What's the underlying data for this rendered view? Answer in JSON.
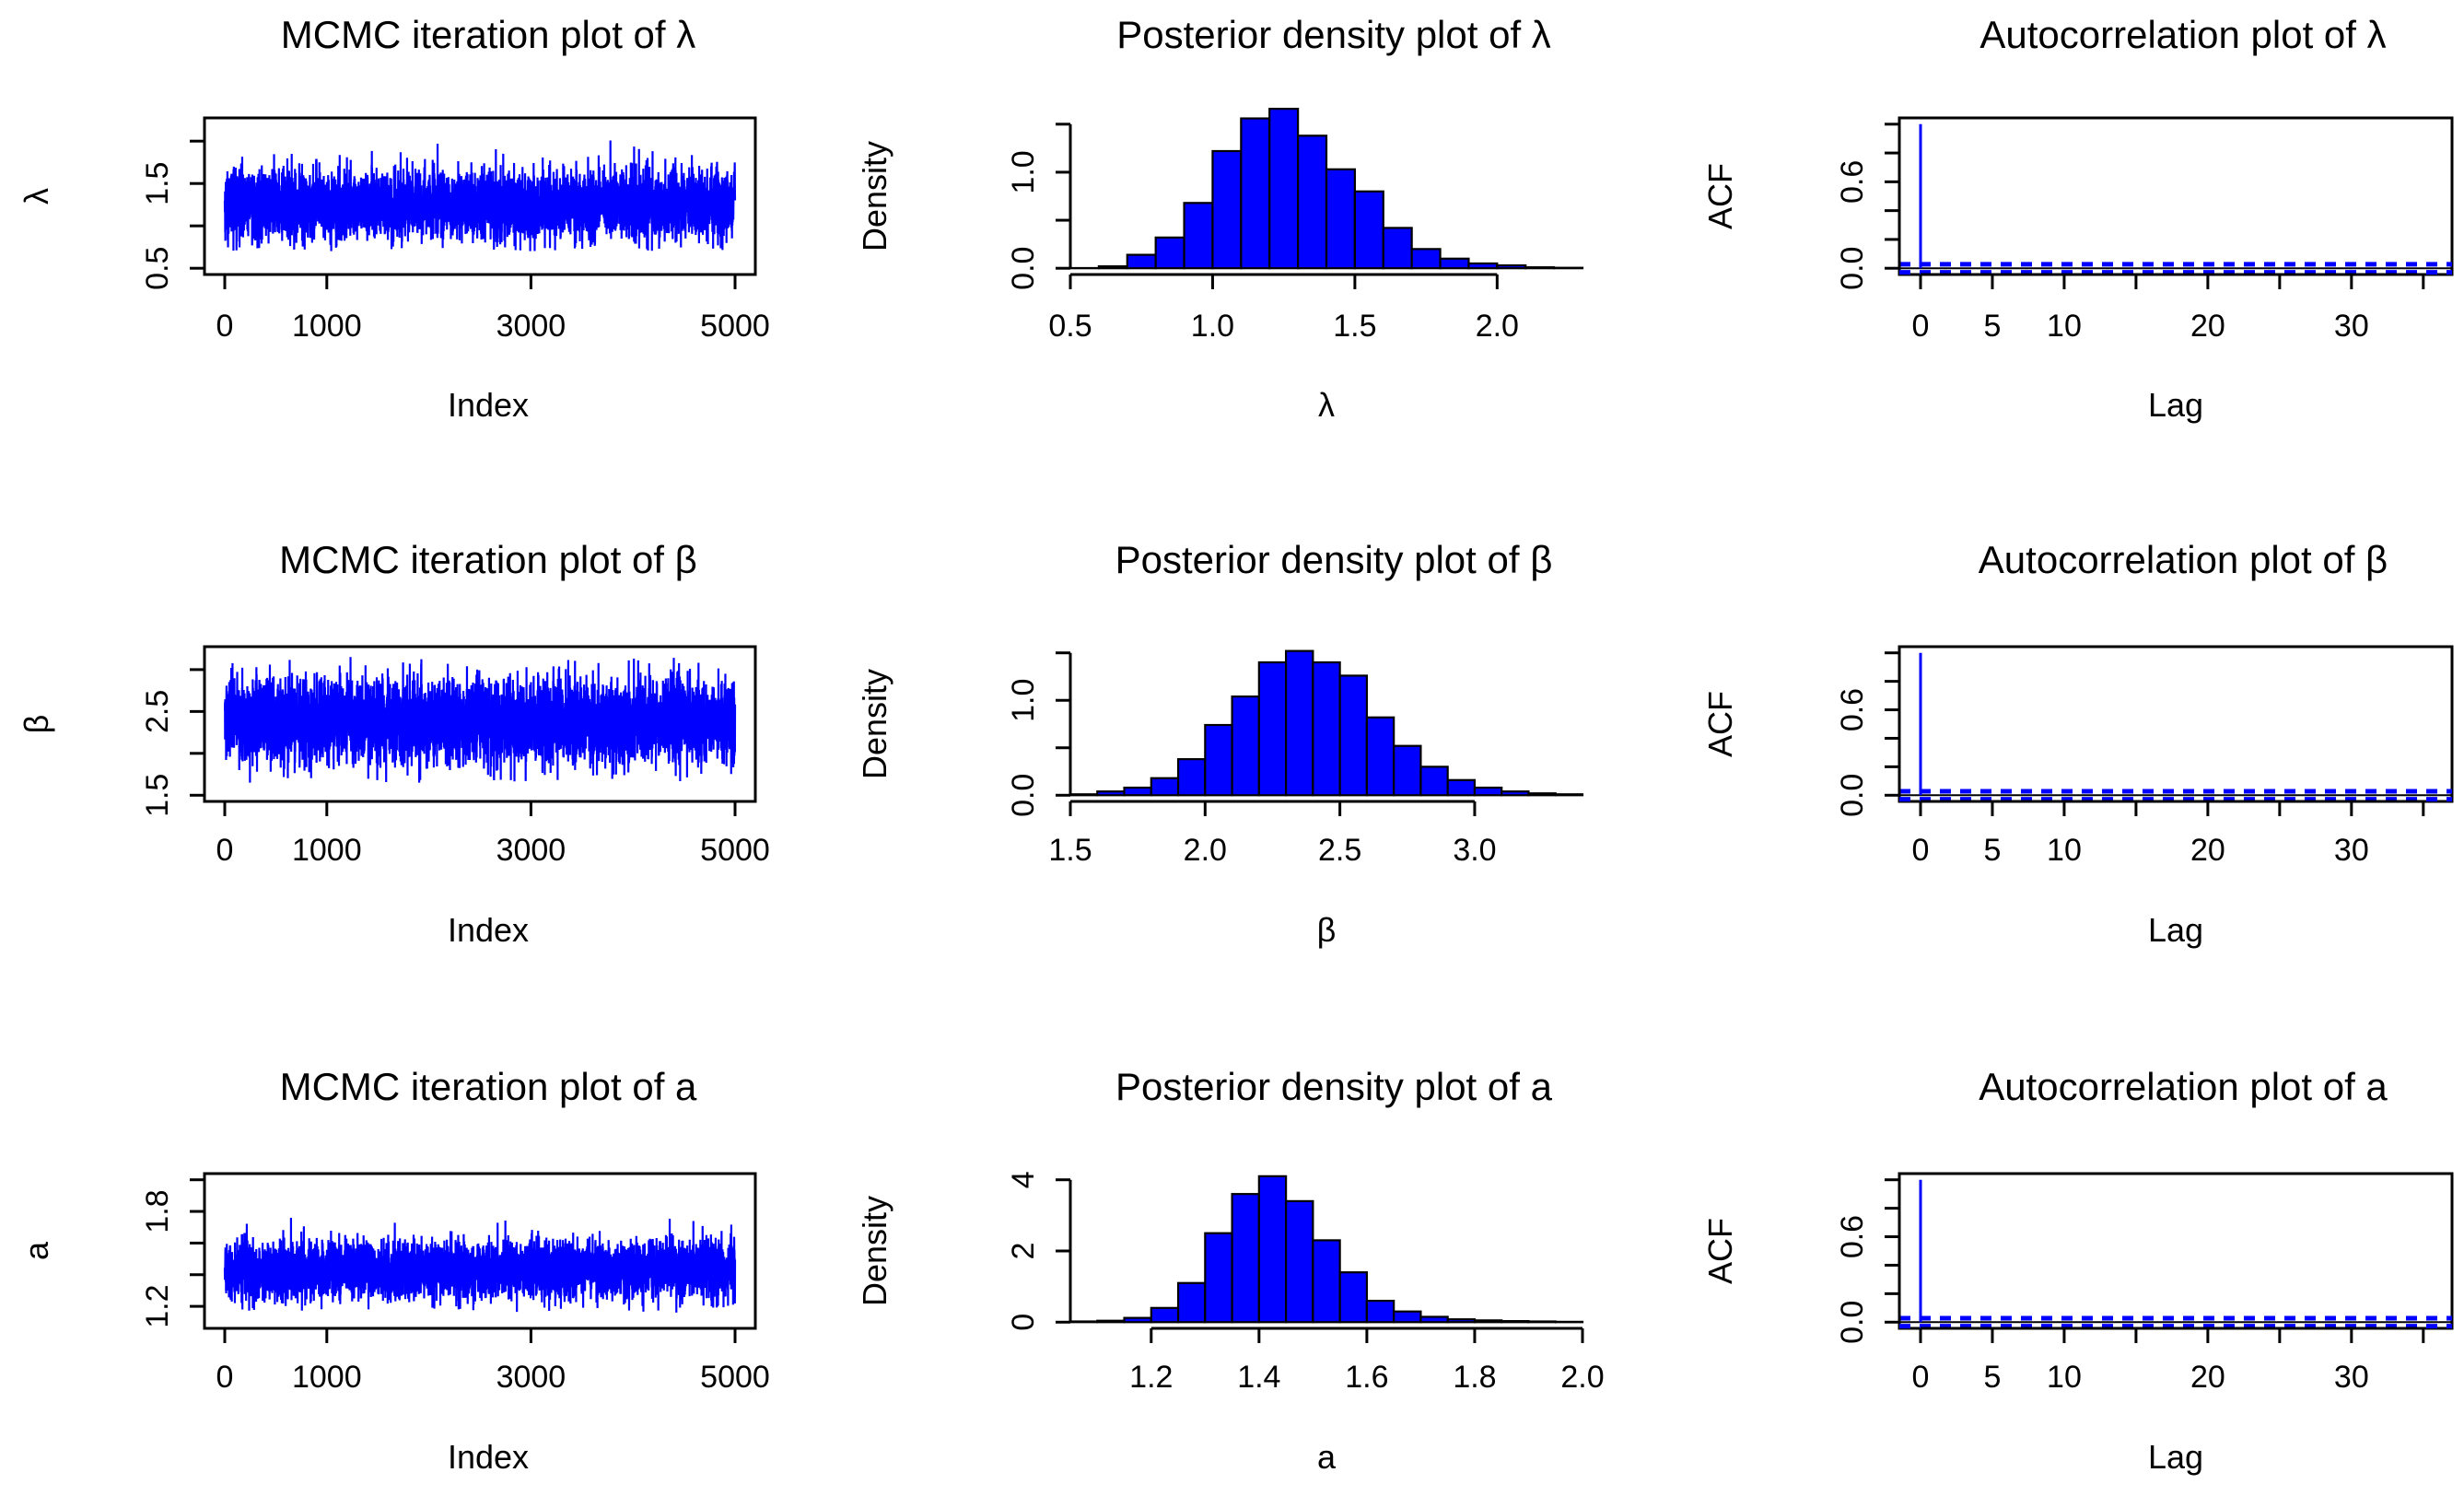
{
  "figure": {
    "layout": "3x3 grid",
    "rows": [
      "lambda",
      "beta",
      "a"
    ],
    "columns": [
      "trace",
      "histogram",
      "acf"
    ],
    "series_color": "#0000ff",
    "bar_fill": "#0000ff",
    "bar_edge": "#000000",
    "axis_color": "#000000"
  },
  "chart_data": [
    {
      "id": "trace-lambda",
      "type": "line",
      "title": "MCMC iteration plot of λ",
      "xlabel": "Index",
      "ylabel": "λ",
      "xlim": [
        0,
        5000
      ],
      "ylim": [
        0.5,
        2.2
      ],
      "xticks": [
        0,
        1000,
        3000,
        5000
      ],
      "xtick_labels": [
        "0",
        "1000",
        "3000",
        "5000"
      ],
      "yticks": [
        0.5,
        1,
        1.5,
        2
      ],
      "ytick_labels": [
        "0.5",
        "",
        "1.5",
        ""
      ],
      "n_iterations": 5000,
      "center": 1.25,
      "spread": 0.2,
      "min_value": 0.7,
      "max_value": 2.05
    },
    {
      "id": "hist-lambda",
      "type": "bar",
      "title": "Posterior density plot of λ",
      "xlabel": "λ",
      "ylabel": "Density",
      "xlim": [
        0.5,
        2.3
      ],
      "ylim": [
        0,
        1.5
      ],
      "xticks": [
        0.5,
        1,
        1.5,
        2
      ],
      "xtick_labels": [
        "0.5",
        "1.0",
        "1.5",
        "2.0"
      ],
      "yticks": [
        0,
        0.5,
        1,
        1.5
      ],
      "ytick_labels": [
        "0.0",
        "",
        "1.0",
        ""
      ],
      "bin_edges": [
        0.5,
        0.6,
        0.7,
        0.8,
        0.9,
        1.0,
        1.1,
        1.2,
        1.3,
        1.4,
        1.5,
        1.6,
        1.7,
        1.8,
        1.9,
        2.0,
        2.1,
        2.2,
        2.3
      ],
      "values": [
        0.002,
        0.02,
        0.14,
        0.32,
        0.68,
        1.22,
        1.56,
        1.66,
        1.38,
        1.03,
        0.8,
        0.42,
        0.2,
        0.1,
        0.05,
        0.03,
        0.01,
        0.005
      ]
    },
    {
      "id": "acf-lambda",
      "type": "bar",
      "title": "Autocorrelation plot of λ",
      "xlabel": "Lag",
      "ylabel": "ACF",
      "xlim": [
        0,
        37
      ],
      "ylim": [
        0,
        1
      ],
      "xticks": [
        0,
        5,
        10,
        15,
        20,
        25,
        30,
        35
      ],
      "xtick_labels": [
        "0",
        "5",
        "10",
        "",
        "20",
        "",
        "30",
        ""
      ],
      "yticks": [
        0,
        0.2,
        0.4,
        0.6,
        0.8,
        1
      ],
      "ytick_labels": [
        "0.0",
        "",
        "",
        "0.6",
        "",
        ""
      ],
      "lags": 37,
      "acf_lag0": 1.0,
      "acf_other": 0.0,
      "ci": 0.028
    },
    {
      "id": "trace-beta",
      "type": "line",
      "title": "MCMC iteration plot of β",
      "xlabel": "Index",
      "ylabel": "β",
      "xlim": [
        0,
        5000
      ],
      "ylim": [
        1.5,
        3.2
      ],
      "xticks": [
        0,
        1000,
        3000,
        5000
      ],
      "xtick_labels": [
        "0",
        "1000",
        "3000",
        "5000"
      ],
      "yticks": [
        1.5,
        2,
        2.5,
        3
      ],
      "ytick_labels": [
        "1.5",
        "",
        "2.5",
        ""
      ],
      "n_iterations": 5000,
      "center": 2.38,
      "spread": 0.25,
      "min_value": 1.65,
      "max_value": 3.15
    },
    {
      "id": "hist-beta",
      "type": "bar",
      "title": "Posterior density plot of β",
      "xlabel": "β",
      "ylabel": "Density",
      "xlim": [
        1.5,
        3.4
      ],
      "ylim": [
        0,
        1.5
      ],
      "xticks": [
        1.5,
        2,
        2.5,
        3
      ],
      "xtick_labels": [
        "1.5",
        "2.0",
        "2.5",
        "3.0"
      ],
      "yticks": [
        0,
        0.5,
        1,
        1.5
      ],
      "ytick_labels": [
        "0.0",
        "",
        "1.0",
        ""
      ],
      "bin_edges": [
        1.5,
        1.6,
        1.7,
        1.8,
        1.9,
        2.0,
        2.1,
        2.2,
        2.3,
        2.4,
        2.5,
        2.6,
        2.7,
        2.8,
        2.9,
        3.0,
        3.1,
        3.2,
        3.3,
        3.4
      ],
      "values": [
        0.01,
        0.04,
        0.08,
        0.18,
        0.38,
        0.74,
        1.04,
        1.4,
        1.52,
        1.4,
        1.26,
        0.82,
        0.52,
        0.3,
        0.16,
        0.08,
        0.04,
        0.02,
        0.01
      ]
    },
    {
      "id": "acf-beta",
      "type": "bar",
      "title": "Autocorrelation plot of β",
      "xlabel": "Lag",
      "ylabel": "ACF",
      "xlim": [
        0,
        37
      ],
      "ylim": [
        0,
        1
      ],
      "xticks": [
        0,
        5,
        10,
        15,
        20,
        25,
        30,
        35
      ],
      "xtick_labels": [
        "0",
        "5",
        "10",
        "",
        "20",
        "",
        "30",
        ""
      ],
      "yticks": [
        0,
        0.2,
        0.4,
        0.6,
        0.8,
        1
      ],
      "ytick_labels": [
        "0.0",
        "",
        "",
        "0.6",
        "",
        ""
      ],
      "lags": 37,
      "acf_lag0": 1.0,
      "acf_other": 0.0,
      "ci": 0.028
    },
    {
      "id": "trace-a",
      "type": "line",
      "title": "MCMC iteration plot of a",
      "xlabel": "Index",
      "ylabel": "a",
      "xlim": [
        0,
        5000
      ],
      "ylim": [
        1.1,
        2.0
      ],
      "xticks": [
        0,
        1000,
        3000,
        5000
      ],
      "xtick_labels": [
        "0",
        "1000",
        "3000",
        "5000"
      ],
      "yticks": [
        1.2,
        1.4,
        1.6,
        1.8,
        2.0
      ],
      "ytick_labels": [
        "1.2",
        "",
        "",
        "1.8",
        ""
      ],
      "n_iterations": 5000,
      "center": 1.43,
      "spread": 0.09,
      "min_value": 1.16,
      "max_value": 1.95
    },
    {
      "id": "hist-a",
      "type": "bar",
      "title": "Posterior density plot of a",
      "xlabel": "a",
      "ylabel": "Density",
      "xlim": [
        1.05,
        2.0
      ],
      "ylim": [
        0,
        4
      ],
      "xticks": [
        1.2,
        1.4,
        1.6,
        1.8,
        2.0
      ],
      "xtick_labels": [
        "1.2",
        "1.4",
        "1.6",
        "1.8",
        "2.0"
      ],
      "yticks": [
        0,
        2,
        4
      ],
      "ytick_labels": [
        "0",
        "2",
        "4"
      ],
      "bin_edges": [
        1.05,
        1.1,
        1.15,
        1.2,
        1.25,
        1.3,
        1.35,
        1.4,
        1.45,
        1.5,
        1.55,
        1.6,
        1.65,
        1.7,
        1.75,
        1.8,
        1.85,
        1.9,
        1.95,
        2.0
      ],
      "values": [
        0.02,
        0.04,
        0.12,
        0.4,
        1.1,
        2.5,
        3.6,
        4.1,
        3.4,
        2.3,
        1.4,
        0.6,
        0.3,
        0.15,
        0.08,
        0.05,
        0.03,
        0.02,
        0.01
      ]
    },
    {
      "id": "acf-a",
      "type": "bar",
      "title": "Autocorrelation plot of a",
      "xlabel": "Lag",
      "ylabel": "ACF",
      "xlim": [
        0,
        37
      ],
      "ylim": [
        0,
        1
      ],
      "xticks": [
        0,
        5,
        10,
        15,
        20,
        25,
        30,
        35
      ],
      "xtick_labels": [
        "0",
        "5",
        "10",
        "",
        "20",
        "",
        "30",
        ""
      ],
      "yticks": [
        0,
        0.2,
        0.4,
        0.6,
        0.8,
        1
      ],
      "ytick_labels": [
        "0.0",
        "",
        "",
        "0.6",
        "",
        ""
      ],
      "lags": 37,
      "acf_lag0": 1.0,
      "acf_other": 0.0,
      "ci": 0.028
    }
  ]
}
